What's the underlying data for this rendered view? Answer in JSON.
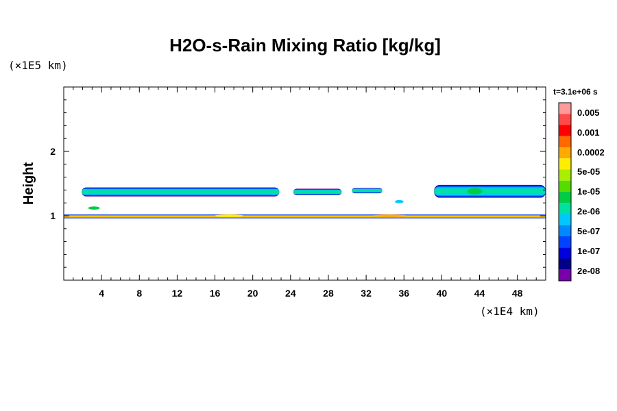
{
  "chart_data": {
    "type": "heatmap",
    "title": "H2O-s-Rain Mixing Ratio [kg/kg]",
    "ylabel": "Height",
    "y_unit": "(×1E5 km)",
    "x_unit": "(×1E4 km)",
    "time_label": "t=3.1e+06 s",
    "xlim": [
      0,
      51
    ],
    "ylim": [
      0,
      3
    ],
    "x_ticks": [
      4,
      8,
      12,
      16,
      20,
      24,
      28,
      32,
      36,
      40,
      44,
      48
    ],
    "y_ticks": [
      1,
      2
    ],
    "colorbar": {
      "colors": [
        "#ff9a9a",
        "#ff4a4a",
        "#ff0000",
        "#ff6a00",
        "#ffaa00",
        "#ffee00",
        "#aaee00",
        "#55dd00",
        "#00cc44",
        "#00e0a0",
        "#00c8ff",
        "#0088ff",
        "#0044ff",
        "#0000dd",
        "#000088",
        "#7700aa"
      ],
      "labels": [
        "0.005",
        "0.001",
        "0.0002",
        "5e-05",
        "1e-05",
        "2e-06",
        "5e-07",
        "1e-07",
        "2e-08"
      ]
    },
    "bands": [
      {
        "y_center": 0.99,
        "thickness": 0.06,
        "x_range": [
          0,
          51
        ],
        "level": "1e-05 to 0.0002"
      },
      {
        "y_center": 1.37,
        "thickness": 0.14,
        "x_range": [
          1.9,
          22.8
        ],
        "level": "5e-07 to 2e-06"
      },
      {
        "y_center": 1.37,
        "thickness": 0.1,
        "x_range": [
          24.3,
          29.4
        ],
        "level": "5e-07 to 2e-06"
      },
      {
        "y_center": 1.39,
        "thickness": 0.08,
        "x_range": [
          30.5,
          33.7
        ],
        "level": "5e-07"
      },
      {
        "y_center": 1.38,
        "thickness": 0.2,
        "x_range": [
          39.2,
          51
        ],
        "level": "5e-07 to 5e-05"
      }
    ]
  }
}
